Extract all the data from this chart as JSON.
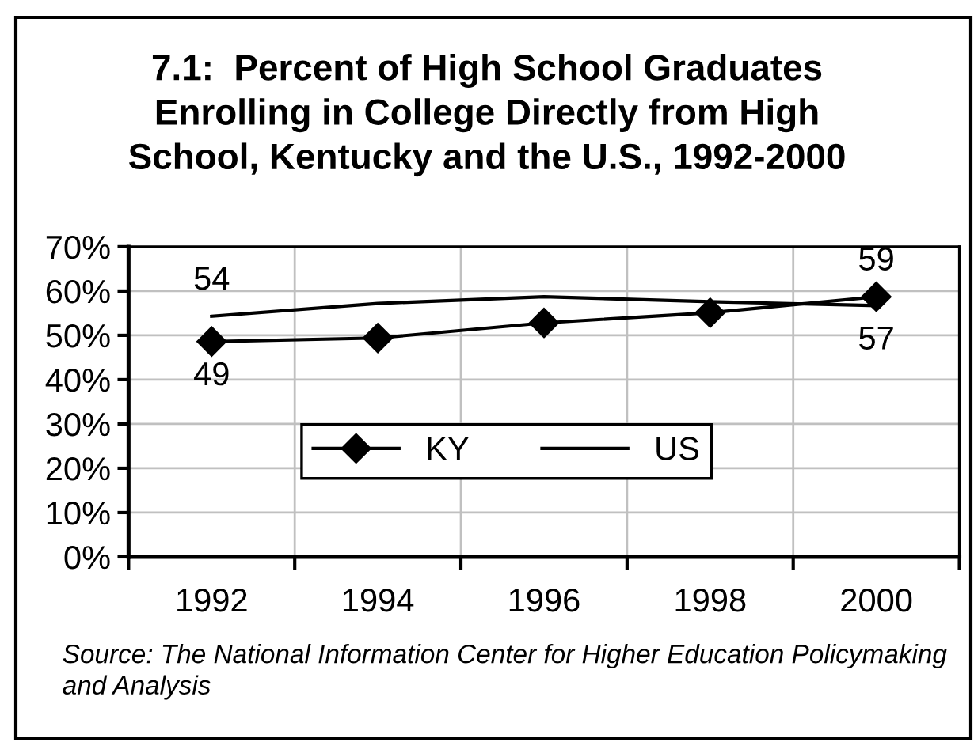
{
  "chart_data": {
    "type": "line",
    "title": "7.1:  Percent of High School Graduates\nEnrolling in College Directly from High\nSchool, Kentucky and the U.S., 1992-2000",
    "categories": [
      "1992",
      "1994",
      "1996",
      "1998",
      "2000"
    ],
    "series": [
      {
        "name": "KY",
        "color": "#000000",
        "marker": "diamond",
        "values": [
          48.6,
          49.4,
          52.8,
          55.1,
          58.7
        ],
        "value_labels": [
          "49",
          null,
          null,
          null,
          "59"
        ]
      },
      {
        "name": "US",
        "color": "#000000",
        "marker": "none",
        "values": [
          54.3,
          57.2,
          58.7,
          57.6,
          56.7
        ],
        "value_labels": [
          "54",
          null,
          null,
          null,
          "57"
        ]
      }
    ],
    "ylim": [
      0,
      70
    ],
    "yticks": [
      {
        "value": 0,
        "label": "0%"
      },
      {
        "value": 10,
        "label": "10%"
      },
      {
        "value": 20,
        "label": "20%"
      },
      {
        "value": 30,
        "label": "30%"
      },
      {
        "value": 40,
        "label": "40%"
      },
      {
        "value": 50,
        "label": "50%"
      },
      {
        "value": 60,
        "label": "60%"
      },
      {
        "value": 70,
        "label": "70%"
      }
    ],
    "grid": true,
    "legend": "bottom",
    "line_style": "solid",
    "annotations": [
      "Source: The National Information Center for Higher Education Policymaking and Analysis"
    ]
  }
}
